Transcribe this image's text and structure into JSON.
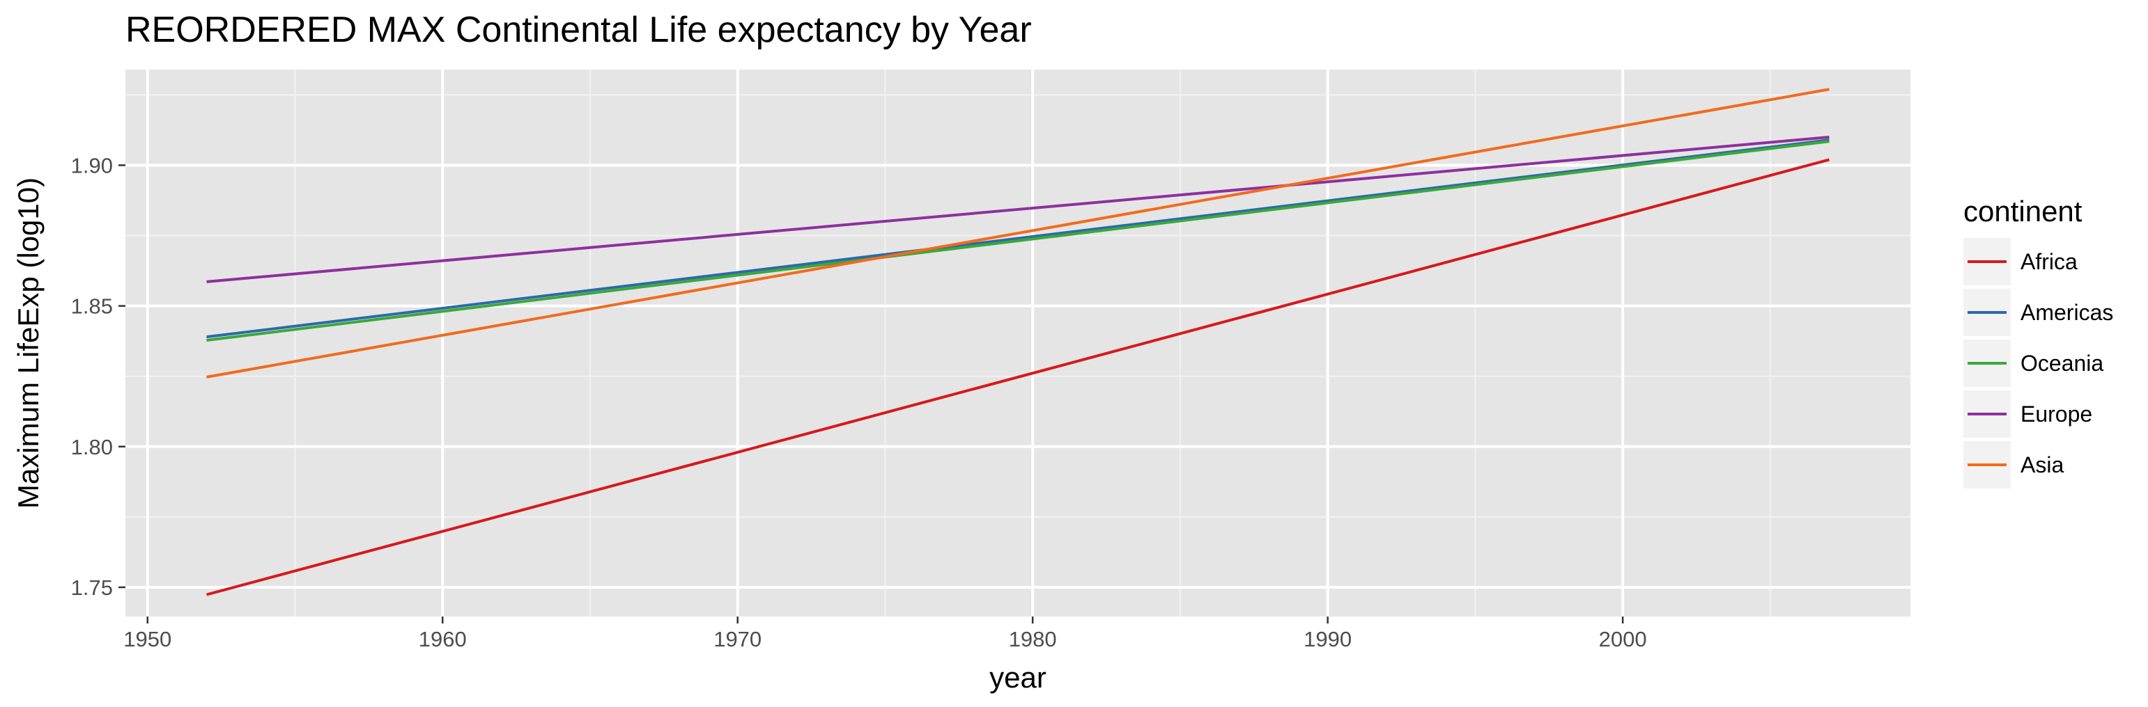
{
  "chart_data": {
    "type": "line",
    "title": "REORDERED MAX Continental Life expectancy by Year",
    "xlabel": "year",
    "ylabel": "Maximum LifeExp (log10)",
    "xlim": [
      1949.25,
      2009.75
    ],
    "ylim": [
      1.7396,
      1.934
    ],
    "x_ticks": [
      1950,
      1960,
      1970,
      1980,
      1990,
      2000
    ],
    "x_tick_labels": [
      "1950",
      "1960",
      "1970",
      "1980",
      "1990",
      "2000"
    ],
    "y_ticks": [
      1.75,
      1.8,
      1.85,
      1.9
    ],
    "y_tick_labels": [
      "1.75",
      "1.80",
      "1.85",
      "1.90"
    ],
    "grid": true,
    "legend": {
      "title": "continent",
      "position": "right"
    },
    "background": "#e5e5e5",
    "series": [
      {
        "name": "Africa",
        "color": "#d7191c",
        "x": [
          1952,
          2007
        ],
        "values": [
          1.7474,
          1.902
        ]
      },
      {
        "name": "Americas",
        "color": "#2c6aa8",
        "x": [
          1952,
          2007
        ],
        "values": [
          1.839,
          1.909
        ]
      },
      {
        "name": "Oceania",
        "color": "#3aa83a",
        "x": [
          1952,
          2007
        ],
        "values": [
          1.8378,
          1.9085
        ]
      },
      {
        "name": "Europe",
        "color": "#8e2f9f",
        "x": [
          1952,
          2007
        ],
        "values": [
          1.8586,
          1.91
        ]
      },
      {
        "name": "Asia",
        "color": "#f26b1d",
        "x": [
          1952,
          2007
        ],
        "values": [
          1.8247,
          1.927
        ]
      }
    ]
  }
}
